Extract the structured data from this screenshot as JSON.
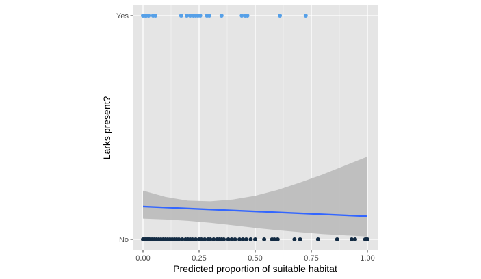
{
  "chart_data": {
    "type": "scatter",
    "xlabel": "Predicted proportion of suitable habitat",
    "ylabel": "Larks present?",
    "xlim": [
      -0.05,
      1.05
    ],
    "x_ticks": [
      0.0,
      0.25,
      0.5,
      0.75,
      1.0
    ],
    "x_tick_labels": [
      "0.00",
      "0.25",
      "0.50",
      "0.75",
      "1.00"
    ],
    "y_categories": [
      "No",
      "Yes"
    ],
    "grid": true,
    "background": "#e5e5e5",
    "series": [
      {
        "category": "Yes",
        "color": "#56a0e8",
        "x": [
          0.0,
          0.01,
          0.015,
          0.025,
          0.045,
          0.055,
          0.17,
          0.195,
          0.21,
          0.225,
          0.235,
          0.245,
          0.255,
          0.285,
          0.295,
          0.35,
          0.44,
          0.455,
          0.465,
          0.61,
          0.725
        ]
      },
      {
        "category": "No",
        "color": "#132b43",
        "x": [
          0.0,
          0.005,
          0.01,
          0.015,
          0.02,
          0.025,
          0.03,
          0.04,
          0.05,
          0.06,
          0.07,
          0.08,
          0.09,
          0.1,
          0.11,
          0.12,
          0.13,
          0.14,
          0.15,
          0.16,
          0.175,
          0.19,
          0.2,
          0.21,
          0.22,
          0.235,
          0.25,
          0.26,
          0.275,
          0.29,
          0.3,
          0.315,
          0.33,
          0.34,
          0.35,
          0.36,
          0.38,
          0.395,
          0.41,
          0.43,
          0.445,
          0.46,
          0.48,
          0.5,
          0.54,
          0.575,
          0.585,
          0.6,
          0.675,
          0.7,
          0.78,
          0.865,
          0.93,
          0.945,
          0.99,
          0.995,
          1.0
        ]
      }
    ],
    "fit": {
      "type": "line",
      "color": "#3366ff",
      "x": [
        0.0,
        1.0
      ],
      "y_prob": [
        0.147,
        0.103
      ],
      "ci": {
        "color": "#bdbdbd",
        "x": [
          0.0,
          0.1,
          0.2,
          0.3,
          0.4,
          0.5,
          0.6,
          0.7,
          0.8,
          0.9,
          1.0
        ],
        "lower": [
          0.093,
          0.089,
          0.083,
          0.074,
          0.063,
          0.051,
          0.041,
          0.032,
          0.024,
          0.018,
          0.013
        ],
        "upper": [
          0.218,
          0.19,
          0.173,
          0.17,
          0.178,
          0.195,
          0.221,
          0.254,
          0.29,
          0.33,
          0.37
        ]
      }
    }
  }
}
